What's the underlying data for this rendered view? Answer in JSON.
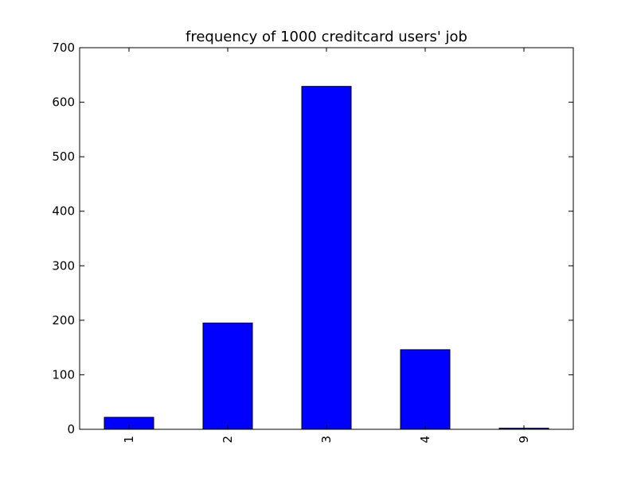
{
  "chart_data": {
    "type": "bar",
    "title": "frequency of 1000 creditcard users' job",
    "xlabel": "",
    "ylabel": "",
    "categories": [
      "1",
      "2",
      "3",
      "4",
      "9"
    ],
    "values": [
      22,
      195,
      629,
      146,
      2
    ],
    "ylim": [
      0,
      700
    ],
    "yticks": [
      "0",
      "100",
      "200",
      "300",
      "400",
      "500",
      "600",
      "700"
    ],
    "x_tick_rotation": "vertical",
    "bar_color": "#0000ff",
    "grid": false,
    "legend": "none"
  }
}
